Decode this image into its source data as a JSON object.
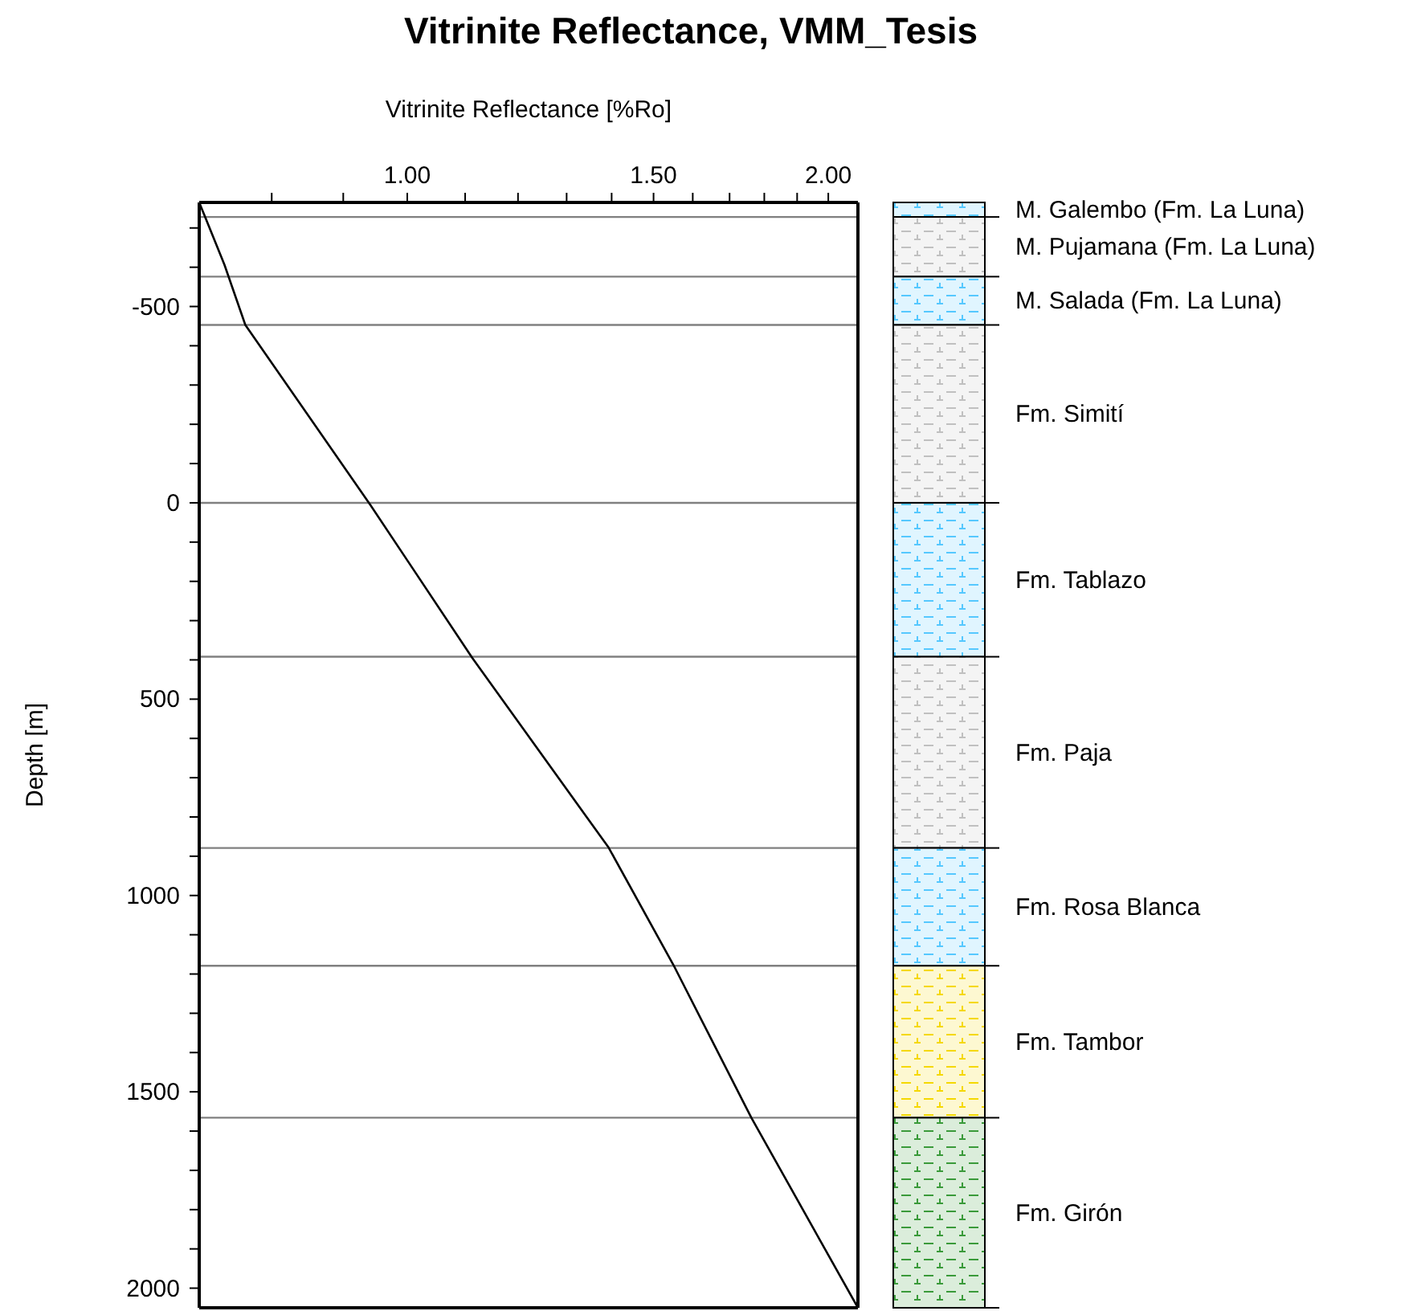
{
  "chart_data": {
    "type": "line",
    "title": "Vitrinite Reflectance, VMM_Tesis",
    "xlabel": "Vitrinite Reflectance [%Ro]",
    "ylabel": "Depth [m]",
    "series": [
      {
        "color": "#000000",
        "x": [
          0.71,
          0.74,
          0.766,
          0.941,
          1.113,
          1.393,
          1.55,
          1.762,
          2.1
        ],
        "values": [
          -765,
          -607,
          -453,
          5,
          395,
          878,
          1177,
          1566,
          2050
        ]
      }
    ],
    "log": "x",
    "marker": "none",
    "line_style": "solid",
    "grid": false,
    "xlim": [
      0.71,
      2.1
    ],
    "xticks": [
      {
        "value": 0.8,
        "label": null
      },
      {
        "value": 0.9,
        "label": null
      },
      {
        "value": 1,
        "label": "1.00"
      },
      {
        "value": 1.1,
        "label": null
      },
      {
        "value": 1.2,
        "label": null
      },
      {
        "value": 1.3,
        "label": null
      },
      {
        "value": 1.4,
        "label": null
      },
      {
        "value": 1.5,
        "label": "1.50"
      },
      {
        "value": 1.6,
        "label": null
      },
      {
        "value": 1.7,
        "label": null
      },
      {
        "value": 1.8,
        "label": null
      },
      {
        "value": 1.9,
        "label": null
      },
      {
        "value": 2,
        "label": "2.00"
      }
    ],
    "ylim": [
      2050,
      -765
    ],
    "yticks": [
      {
        "value": -700,
        "label": null
      },
      {
        "value": -600,
        "label": null
      },
      -500,
      {
        "value": -400,
        "label": null
      },
      {
        "value": -300,
        "label": null
      },
      {
        "value": -200,
        "label": null
      },
      {
        "value": -100,
        "label": null
      },
      0,
      {
        "value": 100,
        "label": null
      },
      {
        "value": 200,
        "label": null
      },
      {
        "value": 300,
        "label": null
      },
      {
        "value": 400,
        "label": null
      },
      500,
      {
        "value": 600,
        "label": null
      },
      {
        "value": 700,
        "label": null
      },
      {
        "value": 800,
        "label": null
      },
      {
        "value": 900,
        "label": null
      },
      1000,
      {
        "value": 1100,
        "label": null
      },
      {
        "value": 1200,
        "label": null
      },
      {
        "value": 1300,
        "label": null
      },
      {
        "value": 1400,
        "label": null
      },
      1500,
      {
        "value": 1600,
        "label": null
      },
      {
        "value": 1700,
        "label": null
      },
      {
        "value": 1800,
        "label": null
      },
      {
        "value": 1900,
        "label": null
      },
      2000
    ],
    "ref_lines": [
      {
        "axis": "y",
        "value": -728,
        "color": "#808080"
      },
      {
        "axis": "y",
        "value": -576,
        "color": "#808080"
      },
      {
        "axis": "y",
        "value": -453,
        "color": "#808080"
      },
      {
        "axis": "y",
        "value": 0,
        "color": "#808080"
      },
      {
        "axis": "y",
        "value": 392,
        "color": "#808080"
      },
      {
        "axis": "y",
        "value": 879,
        "color": "#808080"
      },
      {
        "axis": "y",
        "value": 1179,
        "color": "#808080"
      },
      {
        "axis": "y",
        "value": 1566,
        "color": "#808080"
      }
    ],
    "annotations": [
      "M. Galembo (Fm. La Luna)",
      "M. Pujamana (Fm. La Luna)",
      "M. Salada (Fm. La Luna)",
      "Fm. Simití",
      "Fm. Tablazo",
      "Fm. Paja",
      "Fm. Rosa Blanca",
      "Fm. Tambor",
      "Fm. Girón"
    ]
  }
}
